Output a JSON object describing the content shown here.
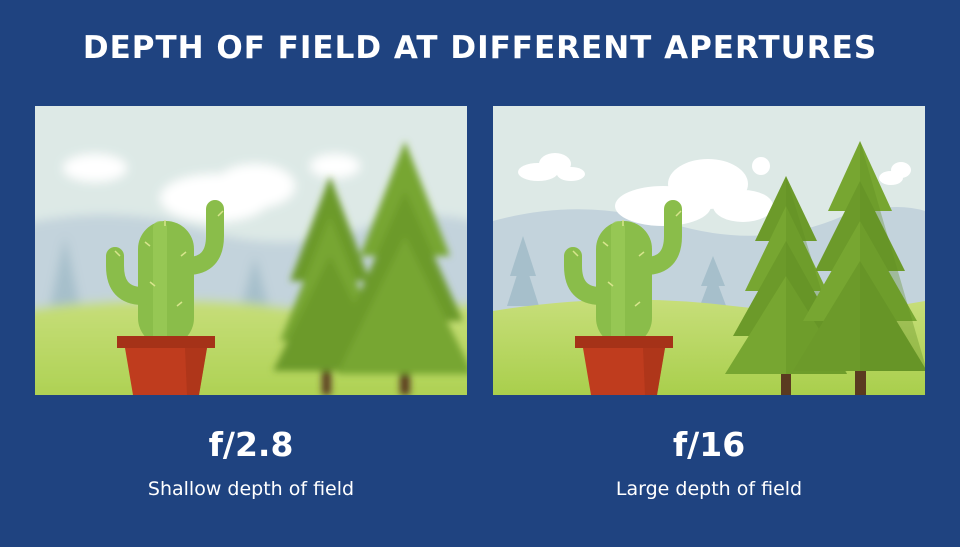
{
  "title": "DEPTH OF FIELD AT DIFFERENT APERTURES",
  "panels": [
    {
      "aperture": "f/2.8",
      "description": "Shallow depth of field"
    },
    {
      "aperture": "f/16",
      "description": "Large depth of field"
    }
  ],
  "colors": {
    "background": "#1f4380",
    "sky": "#dde9e6",
    "hills": "#c3d3dc",
    "ground": "#b4d558",
    "cactus": "#8abd4a",
    "pot": "#bf3c1e",
    "tree": "#6c9a2a",
    "trunk": "#5a3a20"
  }
}
